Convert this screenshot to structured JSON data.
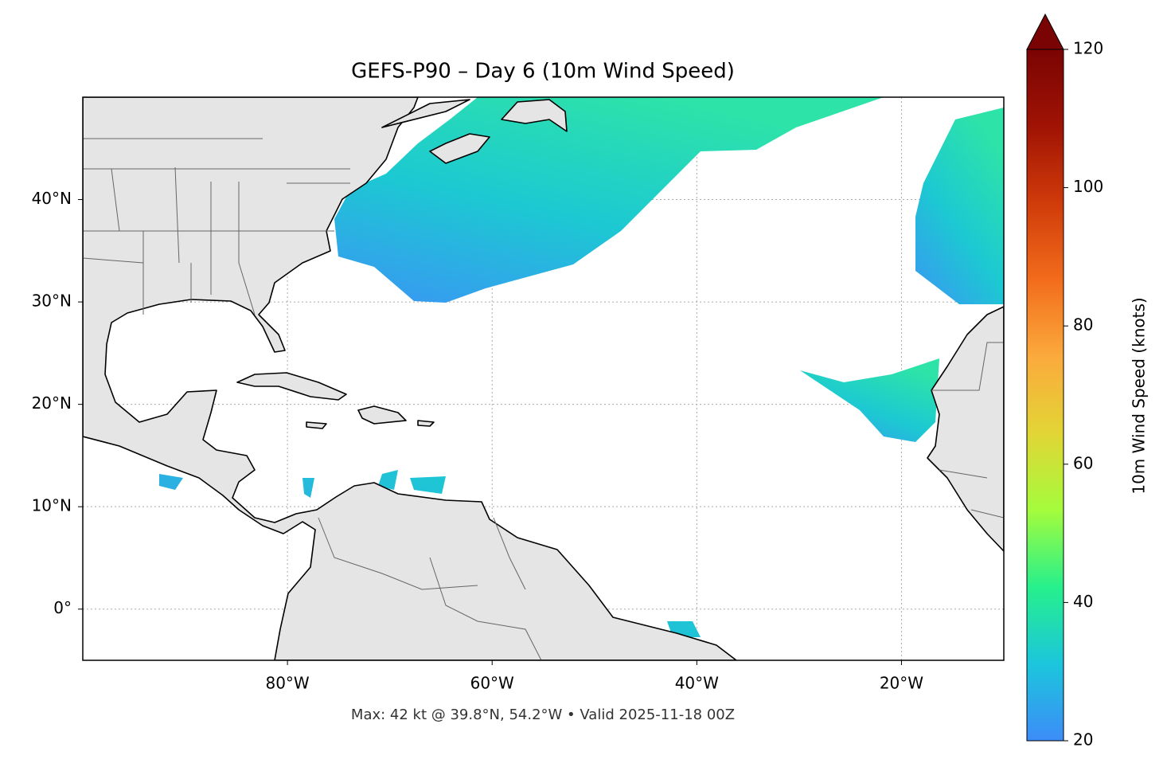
{
  "chart_data": {
    "type": "map",
    "title": "GEFS-P90 – Day 6 (10m Wind Speed)",
    "footer": "Max: 42 kt @ 39.8°N, 54.2°W • Valid 2025-11-18 00Z",
    "xlim": [
      -100,
      -10
    ],
    "ylim": [
      -5,
      50
    ],
    "xticks": [
      {
        "value": -80,
        "label": "80°W"
      },
      {
        "value": -60,
        "label": "60°W"
      },
      {
        "value": -40,
        "label": "40°W"
      },
      {
        "value": -20,
        "label": "20°W"
      }
    ],
    "yticks": [
      {
        "value": 0,
        "label": "0°"
      },
      {
        "value": 10,
        "label": "10°N"
      },
      {
        "value": 20,
        "label": "20°N"
      },
      {
        "value": 30,
        "label": "30°N"
      },
      {
        "value": 40,
        "label": "40°N"
      }
    ],
    "grid": true,
    "colorbar": {
      "label": "10m Wind Speed (knots)",
      "clim": [
        20,
        120
      ],
      "ticks": [
        20,
        40,
        60,
        80,
        100,
        120
      ],
      "colors": [
        "#3d8cf8",
        "#1bc6dc",
        "#26f08c",
        "#a4fc3c",
        "#e2d535",
        "#fbaa3c",
        "#f26c1c",
        "#d03b0a",
        "#a01304",
        "#7a0403"
      ],
      "extend": "max"
    }
  }
}
